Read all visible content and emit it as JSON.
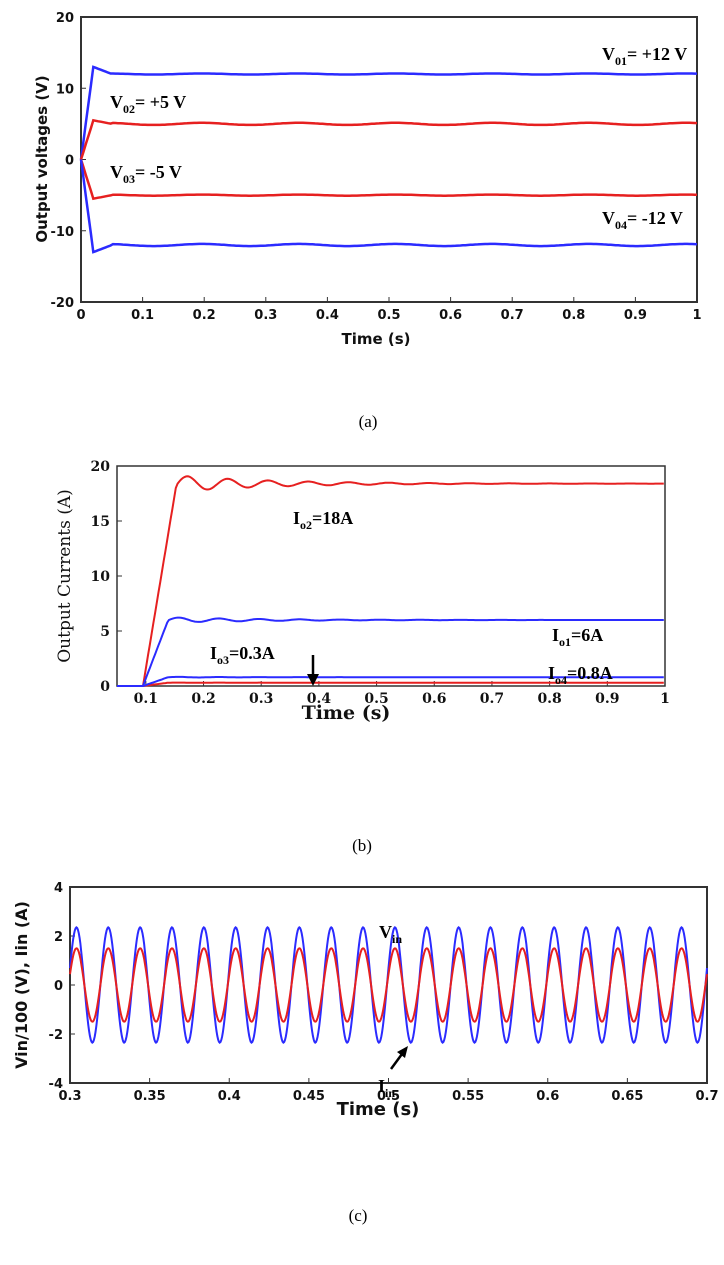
{
  "chart_data": [
    {
      "type": "line",
      "panel": "a",
      "caption": "(a)",
      "xlabel": "Time (s)",
      "ylabel": "Output voltages (V)",
      "xlim": [
        0,
        1
      ],
      "ylim": [
        -20,
        20
      ],
      "xticks": [
        "0",
        "0.1",
        "0.2",
        "0.3",
        "0.4",
        "0.5",
        "0.6",
        "0.7",
        "0.8",
        "0.9",
        "1"
      ],
      "yticks": [
        "20",
        "10",
        "0",
        "-10",
        "-20"
      ],
      "series": [
        {
          "label_main": "V",
          "label_sub": "01",
          "label_rest": "= +12 V",
          "color": "#2b2bff",
          "steady": 12,
          "peak": 13
        },
        {
          "label_main": "V",
          "label_sub": "02",
          "label_rest": "= +5 V",
          "color": "#e62020",
          "steady": 5,
          "peak": 5.5
        },
        {
          "label_main": "V",
          "label_sub": "03",
          "label_rest": "= -5 V",
          "color": "#e62020",
          "steady": -5,
          "peak": -5.5
        },
        {
          "label_main": "V",
          "label_sub": "04",
          "label_rest": "= -12 V",
          "color": "#2b2bff",
          "steady": -12,
          "peak": -13
        }
      ]
    },
    {
      "type": "line",
      "panel": "b",
      "caption": "(b)",
      "xlabel": "Time (s)",
      "ylabel": "Output Currents (A)",
      "xlim": [
        0.05,
        1
      ],
      "ylim": [
        0,
        20
      ],
      "xticks": [
        "0.1",
        "0.2",
        "0.3",
        "0.4",
        "0.5",
        "0.6",
        "0.7",
        "0.8",
        "0.9",
        "1"
      ],
      "yticks": [
        "20",
        "15",
        "10",
        "5",
        "0"
      ],
      "series": [
        {
          "label_main": "I",
          "label_sub": "o2",
          "label_rest": "=18A",
          "color": "#e62020",
          "steady": 18.4
        },
        {
          "label_main": "I",
          "label_sub": "o1",
          "label_rest": "=6A",
          "color": "#2b2bff",
          "steady": 6
        },
        {
          "label_main": "I",
          "label_sub": "o3",
          "label_rest": "=0.3A",
          "color": "#e62020",
          "steady": 0.3
        },
        {
          "label_main": "I",
          "label_sub": "o4",
          "label_rest": "=0.8A",
          "color": "#2b2bff",
          "steady": 0.8
        }
      ]
    },
    {
      "type": "line",
      "panel": "c",
      "caption": "(c)",
      "xlabel": "Time (s)",
      "ylabel": "Vin/100 (V), Iin (A)",
      "xlim": [
        0.3,
        0.7
      ],
      "ylim": [
        -4,
        4
      ],
      "xticks": [
        "0.3",
        "0.35",
        "0.4",
        "0.45",
        "0.5",
        "0.55",
        "0.6",
        "0.65",
        "0.7"
      ],
      "yticks": [
        "4",
        "2",
        "0",
        "-2",
        "-4"
      ],
      "frequency_hz": 50,
      "series": [
        {
          "label_main": "V",
          "label_sub": "in",
          "color": "#2b2bff",
          "amplitude": 2.35
        },
        {
          "label_main": "I",
          "label_sub": "in",
          "color": "#e62020",
          "amplitude": 1.5
        }
      ]
    }
  ]
}
